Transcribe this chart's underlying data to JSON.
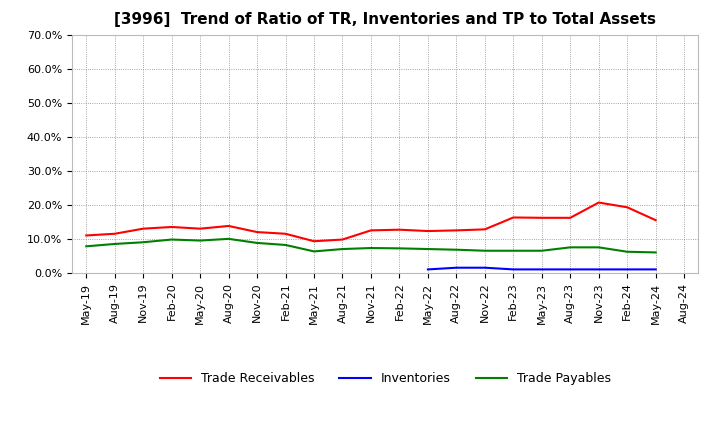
{
  "title": "[3996]  Trend of Ratio of TR, Inventories and TP to Total Assets",
  "x_labels": [
    "May-19",
    "Aug-19",
    "Nov-19",
    "Feb-20",
    "May-20",
    "Aug-20",
    "Nov-20",
    "Feb-21",
    "May-21",
    "Aug-21",
    "Nov-21",
    "Feb-22",
    "May-22",
    "Aug-22",
    "Nov-22",
    "Feb-23",
    "May-23",
    "Aug-23",
    "Nov-23",
    "Feb-24",
    "May-24",
    "Aug-24"
  ],
  "trade_receivables": [
    0.11,
    0.115,
    0.13,
    0.135,
    0.13,
    0.138,
    0.12,
    0.115,
    0.093,
    0.098,
    0.125,
    0.127,
    0.123,
    0.125,
    0.128,
    0.163,
    0.162,
    0.162,
    0.207,
    0.193,
    0.155,
    null
  ],
  "inventories": [
    null,
    null,
    null,
    null,
    null,
    null,
    null,
    null,
    null,
    null,
    null,
    null,
    0.01,
    0.015,
    0.015,
    0.01,
    0.01,
    0.01,
    0.01,
    0.01,
    0.01,
    null
  ],
  "trade_payables": [
    0.078,
    0.085,
    0.09,
    0.098,
    0.095,
    0.1,
    0.088,
    0.082,
    0.063,
    0.07,
    0.073,
    0.072,
    0.07,
    0.068,
    0.065,
    0.065,
    0.065,
    0.075,
    0.075,
    0.062,
    0.06,
    null
  ],
  "ylim": [
    0.0,
    0.7
  ],
  "yticks": [
    0.0,
    0.1,
    0.2,
    0.3,
    0.4,
    0.5,
    0.6,
    0.7
  ],
  "ytick_labels": [
    "0.0%",
    "10.0%",
    "20.0%",
    "30.0%",
    "40.0%",
    "50.0%",
    "60.0%",
    "70.0%"
  ],
  "tr_color": "#FF0000",
  "inv_color": "#0000FF",
  "tp_color": "#008000",
  "background_color": "#FFFFFF",
  "grid_color": "#888888",
  "legend_labels": [
    "Trade Receivables",
    "Inventories",
    "Trade Payables"
  ],
  "title_fontsize": 11,
  "tick_fontsize": 8,
  "legend_fontsize": 9,
  "line_width": 1.5
}
